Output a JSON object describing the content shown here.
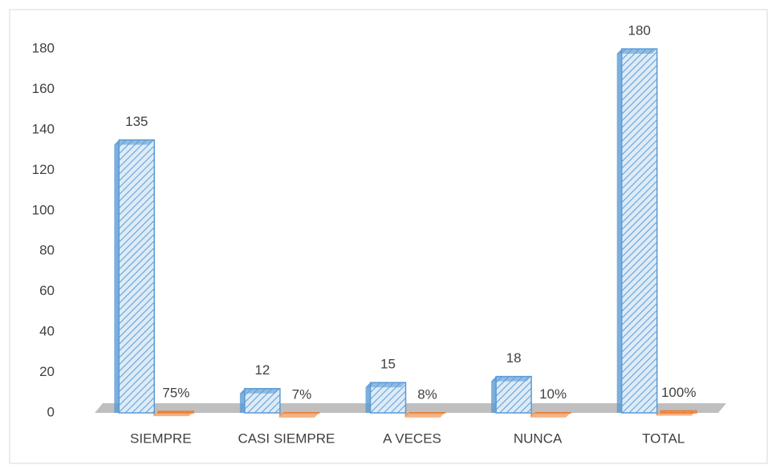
{
  "chart_data": {
    "type": "bar3d",
    "categories": [
      "SIEMPRE",
      "CASI  SIEMPRE",
      "A VECES",
      "NUNCA",
      "TOTAL"
    ],
    "series": [
      {
        "color": "#5b9bd5",
        "values": [
          135,
          12,
          15,
          18,
          180
        ]
      },
      {
        "color": "#ed7d31",
        "values": [
          0.75,
          0.07,
          0.08,
          0.1,
          1
        ],
        "value_labels": [
          "75%",
          "7%",
          "8%",
          "10%",
          "100%"
        ]
      }
    ],
    "ylim": [
      0,
      180
    ],
    "yticks": [
      0,
      20,
      40,
      60,
      80,
      100,
      120,
      140,
      160,
      180
    ],
    "grid": false
  }
}
